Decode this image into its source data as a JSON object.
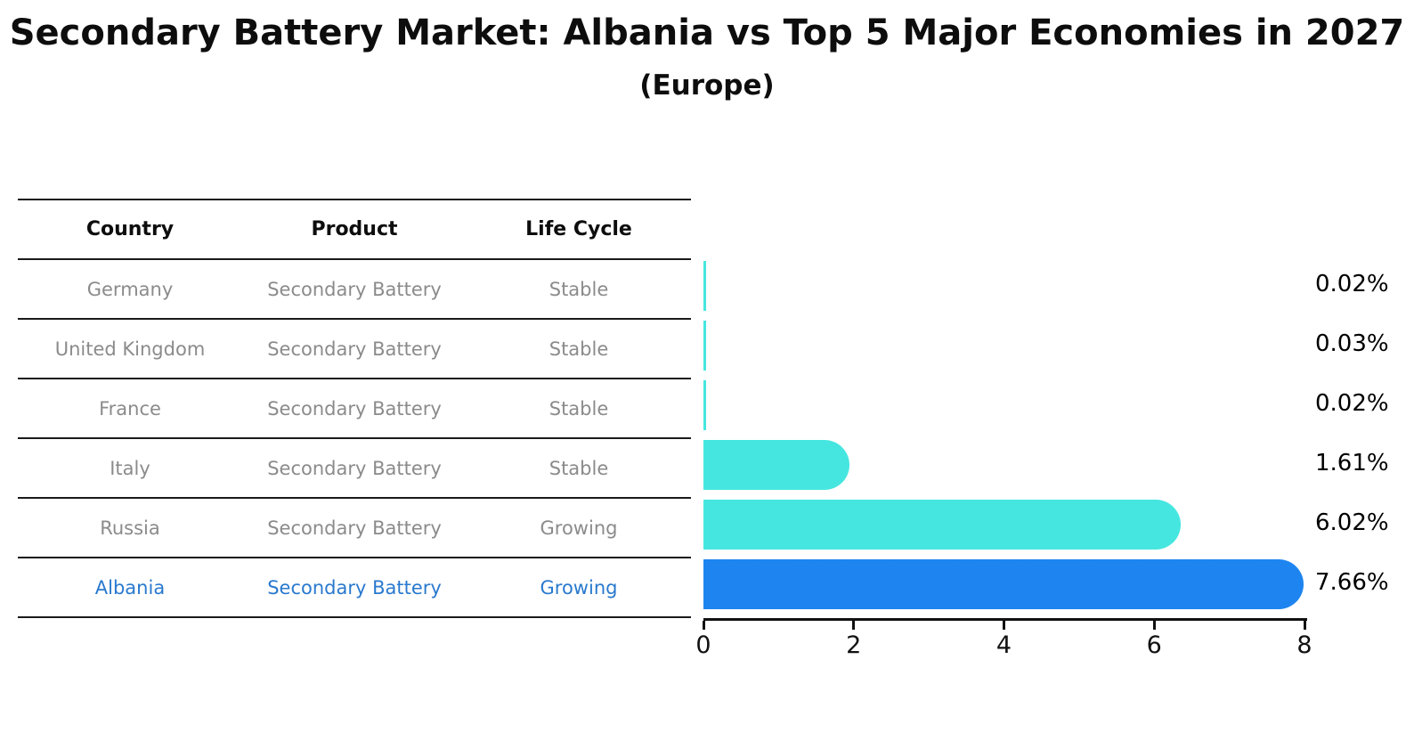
{
  "title": "Secondary Battery Market: Albania vs Top 5 Major Economies in 2027",
  "subtitle": "(Europe)",
  "table": {
    "headers": [
      "Country",
      "Product",
      "Life Cycle"
    ],
    "rows": [
      {
        "country": "Germany",
        "product": "Secondary Battery",
        "life_cycle": "Stable",
        "highlight": false
      },
      {
        "country": "United Kingdom",
        "product": "Secondary Battery",
        "life_cycle": "Stable",
        "highlight": false
      },
      {
        "country": "France",
        "product": "Secondary Battery",
        "life_cycle": "Stable",
        "highlight": false
      },
      {
        "country": "Italy",
        "product": "Secondary Battery",
        "life_cycle": "Stable",
        "highlight": false
      },
      {
        "country": "Russia",
        "product": "Secondary Battery",
        "life_cycle": "Growing",
        "highlight": false
      },
      {
        "country": "Albania",
        "product": "Secondary Battery",
        "life_cycle": "Growing",
        "highlight": true
      }
    ]
  },
  "chart_data": {
    "type": "bar",
    "orientation": "horizontal",
    "title": "Secondary Battery Market: Albania vs Top 5 Major Economies in 2027 (Europe)",
    "categories": [
      "Germany",
      "United Kingdom",
      "France",
      "Italy",
      "Russia",
      "Albania"
    ],
    "values": [
      0.02,
      0.03,
      0.02,
      1.61,
      6.02,
      7.66
    ],
    "value_labels": [
      "0.02%",
      "0.03%",
      "0.02%",
      "1.61%",
      "6.02%",
      "7.66%"
    ],
    "xlabel": "",
    "ylabel": "",
    "xlim": [
      0,
      8
    ],
    "xticks": [
      0,
      2,
      4,
      6,
      8
    ],
    "grid": false,
    "legend": false,
    "highlight_category": "Albania",
    "colors": {
      "bar_default": "#46e6e0",
      "bar_highlight": "#1e85f0",
      "highlight_text": "#2979ce",
      "table_text": "#8b8b8b",
      "label_text": "#000000"
    }
  }
}
